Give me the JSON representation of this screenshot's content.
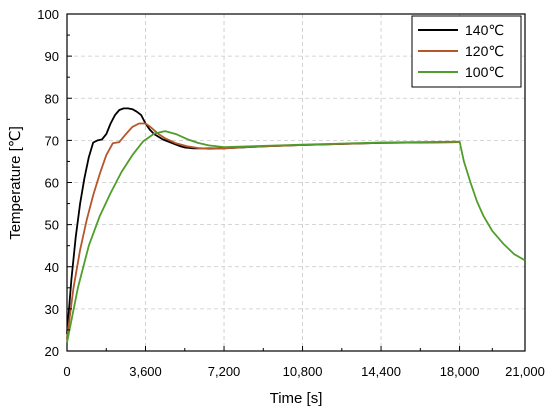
{
  "chart_data": {
    "type": "line",
    "xlabel": "Time [s]",
    "ylabel": "Temperature [℃]",
    "xlim": [
      0,
      21000
    ],
    "ylim": [
      20,
      100
    ],
    "xticks": [
      0,
      3600,
      7200,
      10800,
      14400,
      18000,
      21000
    ],
    "xtick_labels": [
      "0",
      "3,600",
      "7,200",
      "10,800",
      "14,400",
      "18,000",
      "21,000"
    ],
    "yticks": [
      20,
      30,
      40,
      50,
      60,
      70,
      80,
      90,
      100
    ],
    "ytick_labels": [
      "20",
      "30",
      "40",
      "50",
      "60",
      "70",
      "80",
      "90",
      "100"
    ],
    "grid": true,
    "legend_position": "top-right",
    "series": [
      {
        "name": "140℃",
        "color": "#000000",
        "x": [
          0,
          200,
          400,
          600,
          800,
          1000,
          1200,
          1400,
          1600,
          1800,
          2000,
          2200,
          2400,
          2600,
          2800,
          3000,
          3200,
          3400,
          3600,
          3800,
          4000,
          4400,
          4800,
          5200,
          5400,
          5800,
          7200,
          9000,
          10800,
          14400,
          17990
        ],
        "y": [
          24,
          37,
          47,
          55,
          61,
          66,
          69.5,
          70,
          70.2,
          71.5,
          74,
          76,
          77.2,
          77.6,
          77.6,
          77.4,
          76.8,
          76,
          74,
          72.5,
          71.5,
          70.2,
          69.4,
          68.6,
          68.3,
          68.1,
          68.1,
          68.6,
          68.9,
          69.4,
          69.6
        ]
      },
      {
        "name": "120℃",
        "color": "#b5562b",
        "x": [
          0,
          300,
          600,
          900,
          1200,
          1500,
          1800,
          2100,
          2400,
          2700,
          3000,
          3300,
          3600,
          3800,
          4000,
          4200,
          4500,
          5000,
          5500,
          6000,
          6500,
          7200,
          9000,
          10800,
          14400,
          17990
        ],
        "y": [
          23,
          35,
          44,
          51,
          57,
          62,
          66.5,
          69.3,
          69.6,
          71.5,
          73.2,
          74,
          74,
          73.3,
          72.4,
          71.5,
          70.5,
          69.3,
          68.6,
          68.2,
          68,
          68.1,
          68.6,
          68.9,
          69.4,
          69.6
        ]
      },
      {
        "name": "100℃",
        "color": "#4f9d2a",
        "x": [
          0,
          500,
          1000,
          1500,
          2000,
          2500,
          3000,
          3500,
          4000,
          4500,
          5000,
          5500,
          6000,
          6500,
          7200,
          9000,
          10800,
          14400,
          18000,
          18200,
          18500,
          18800,
          19100,
          19500,
          20000,
          20500,
          21000
        ],
        "y": [
          22,
          35,
          45,
          52,
          57.5,
          62.5,
          66.5,
          69.8,
          71.6,
          72.2,
          71.5,
          70.3,
          69.4,
          68.8,
          68.4,
          68.7,
          69,
          69.5,
          69.7,
          65,
          60,
          55.5,
          52,
          48.5,
          45.5,
          43,
          41.5
        ]
      }
    ]
  }
}
